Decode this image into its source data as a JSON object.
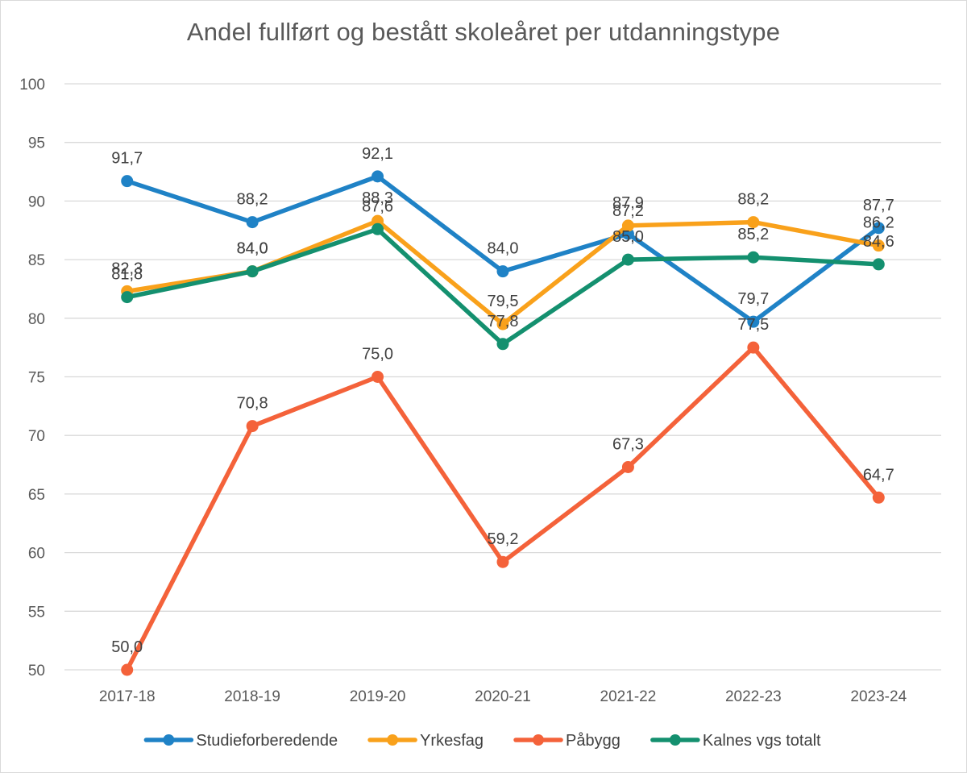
{
  "chart_data": {
    "type": "line",
    "title": "Andel fullført og bestått skoleåret per utdanningstype",
    "xlabel": "",
    "ylabel": "",
    "categories": [
      "2017-18",
      "2018-19",
      "2019-20",
      "2020-21",
      "2021-22",
      "2022-23",
      "2023-24"
    ],
    "ylim": [
      50,
      100
    ],
    "yticks": [
      50,
      55,
      60,
      65,
      70,
      75,
      80,
      85,
      90,
      95,
      100
    ],
    "grid": true,
    "legend_position": "bottom",
    "series": [
      {
        "name": "Studieforberedende",
        "color": "#1f82c6",
        "values": [
          91.7,
          88.2,
          92.1,
          84.0,
          87.2,
          79.7,
          87.7
        ],
        "labels": [
          "91,7",
          "88,2",
          "92,1",
          "84,0",
          "87,2",
          "79,7",
          "87,7"
        ]
      },
      {
        "name": "Yrkesfag",
        "color": "#f9a11b",
        "values": [
          82.3,
          84.0,
          88.3,
          79.5,
          87.9,
          88.2,
          86.2
        ],
        "labels": [
          "82,3",
          "84,0",
          "88,3",
          "79,5",
          "87,9",
          "88,2",
          "86,2"
        ]
      },
      {
        "name": "Påbygg",
        "color": "#f4623a",
        "values": [
          50.0,
          70.8,
          75.0,
          59.2,
          67.3,
          77.5,
          64.7
        ],
        "labels": [
          "50,0",
          "70,8",
          "75,0",
          "59,2",
          "67,3",
          "77,5",
          "64,7"
        ]
      },
      {
        "name": "Kalnes vgs totalt",
        "color": "#14906f",
        "values": [
          81.8,
          84.0,
          87.6,
          77.8,
          85.0,
          85.2,
          84.6
        ],
        "labels": [
          "81,8",
          "84,0",
          "87,6",
          "77,8",
          "85,0",
          "85,2",
          "84,6"
        ]
      }
    ]
  }
}
